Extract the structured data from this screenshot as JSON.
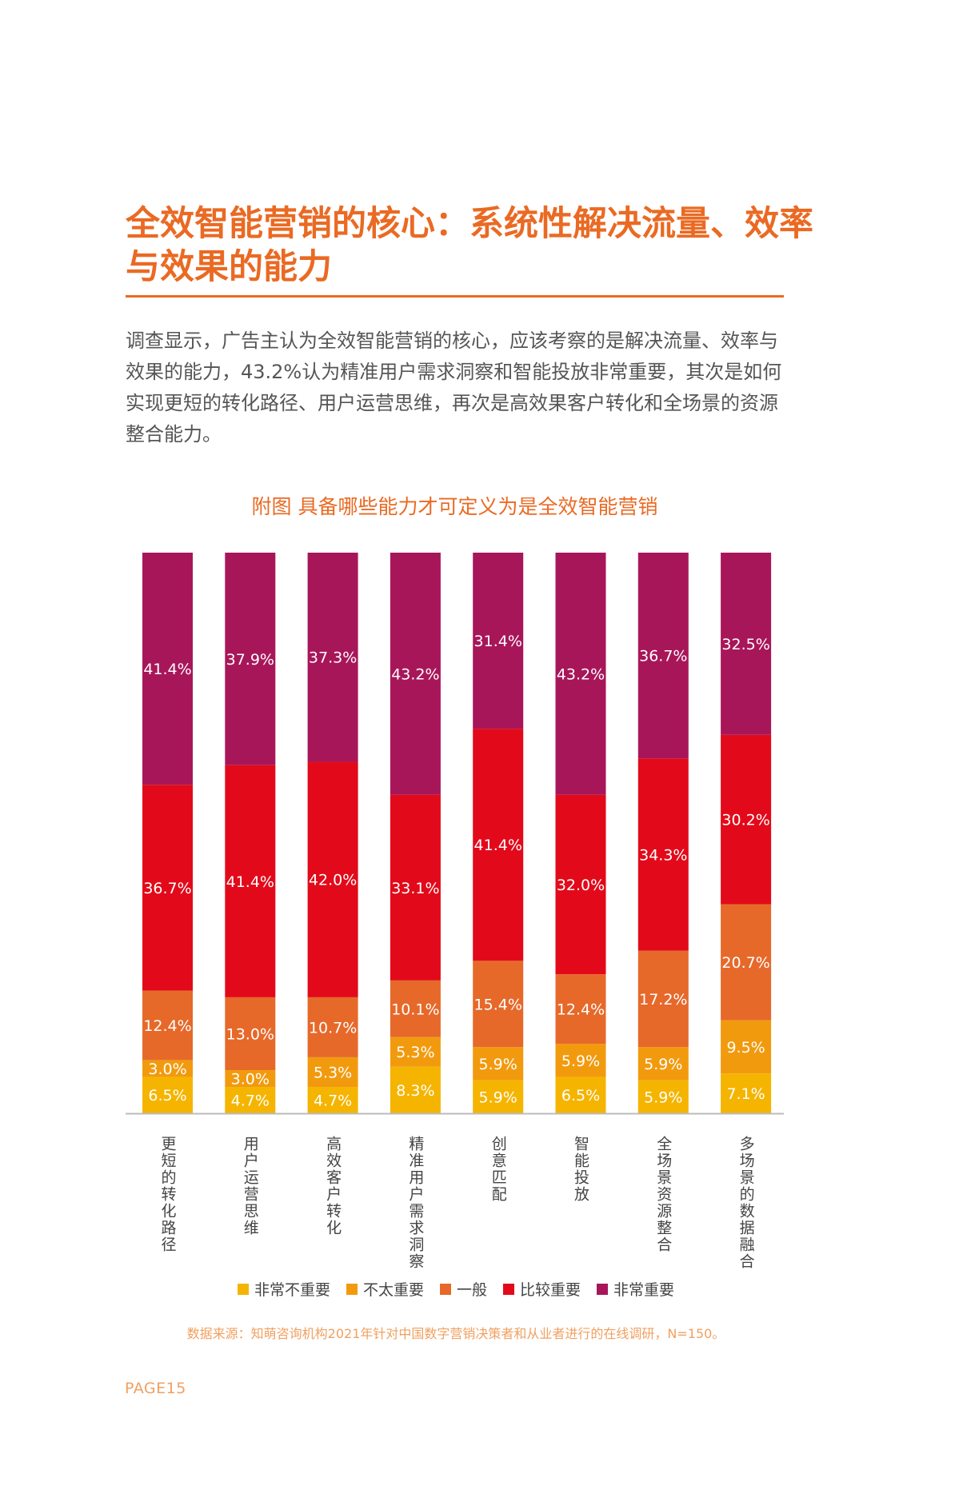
{
  "page": {
    "title": "全效智能营销的核心：系统性解决流量、效率与效果的能力",
    "body": "调查显示，广告主认为全效智能营销的核心，应该考察的是解决流量、效率与效果的能力，43.2%认为精准用户需求洞察和智能投放非常重要，其次是如何实现更短的转化路径、用户运营思维，再次是高效果客户转化和全场景的资源整合能力。",
    "source": "数据来源：知萌咨询机构2021年针对中国数字营销决策者和从业者进行的在线调研，N=150。",
    "page_number": "PAGE15"
  },
  "chart_data": {
    "type": "bar",
    "stacked": true,
    "title": "附图  具备哪些能力才可定义为是全效智能营销",
    "categories": [
      "更短的转化路径",
      "用户运营思维",
      "高效客户转化",
      "精准用户需求洞察",
      "创意匹配",
      "智能投放",
      "全场景资源整合",
      "多场景的数据融合"
    ],
    "series": [
      {
        "name": "非常不重要",
        "color": "#f5b400",
        "values": [
          6.5,
          4.7,
          4.7,
          8.3,
          5.9,
          6.5,
          5.9,
          7.1
        ],
        "labels": [
          "6.5%",
          "4.7%",
          "4.7%",
          "8.3%",
          "5.9%",
          "6.5%",
          "5.9%",
          "7.1%"
        ]
      },
      {
        "name": "不太重要",
        "color": "#f29a0e",
        "values": [
          3.0,
          3.0,
          5.3,
          5.3,
          5.9,
          5.9,
          5.9,
          9.5
        ],
        "labels": [
          "3.0%",
          "3.0%",
          "5.3%",
          "5.3%",
          "5.9%",
          "5.9%",
          "5.9%",
          "9.5%"
        ]
      },
      {
        "name": "一般",
        "color": "#e6692a",
        "values": [
          12.4,
          13.0,
          10.7,
          10.1,
          15.4,
          12.4,
          17.2,
          20.7
        ],
        "labels": [
          "12.4%",
          "13.0%",
          "10.7%",
          "10.1%",
          "15.4%",
          "12.4%",
          "17.2%",
          "20.7%"
        ]
      },
      {
        "name": "比较重要",
        "color": "#e20a1a",
        "values": [
          36.7,
          41.4,
          42.0,
          33.1,
          41.4,
          32.0,
          34.3,
          30.2
        ],
        "labels": [
          "36.7%",
          "41.4%",
          "42.0%",
          "33.1%",
          "41.4%",
          "32.0%",
          "34.3%",
          "30.2%"
        ]
      },
      {
        "name": "非常重要",
        "color": "#a8165a",
        "values": [
          41.4,
          37.9,
          37.3,
          43.2,
          31.4,
          43.2,
          36.7,
          32.5
        ],
        "labels": [
          "41.4%",
          "37.9%",
          "37.3%",
          "43.2%",
          "31.4%",
          "43.2%",
          "36.7%",
          "32.5%"
        ]
      }
    ],
    "ylim": [
      0,
      100
    ],
    "legend_position": "bottom",
    "grid": false
  }
}
